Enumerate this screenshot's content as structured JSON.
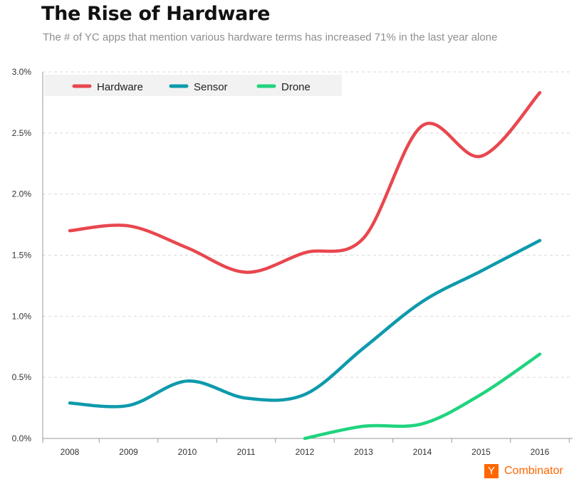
{
  "title": "The Rise of Hardware",
  "subtitle": "The # of YC apps that mention various hardware terms has increased 71% in the last year alone",
  "brand": {
    "logo_letter": "Y",
    "name": "Combinator",
    "color": "#ff6600"
  },
  "chart_data": {
    "type": "line",
    "title": "The Rise of Hardware",
    "subtitle": "The # of YC apps that mention various hardware terms has increased 71% in the last year alone",
    "xlabel": "",
    "ylabel": "",
    "x": [
      "2008",
      "2009",
      "2010",
      "2011",
      "2012",
      "2013",
      "2014",
      "2015",
      "2016"
    ],
    "ylim": [
      0,
      3.0
    ],
    "yticks": [
      0,
      0.5,
      1.0,
      1.5,
      2.0,
      2.5,
      3.0
    ],
    "ytick_labels": [
      "0.0%",
      "0.5%",
      "1.0%",
      "1.5%",
      "2.0%",
      "2.5%",
      "3.0%"
    ],
    "grid": "horizontal dashed",
    "legend": "top-left",
    "smooth": true,
    "series": [
      {
        "name": "Hardware",
        "color": "#e8474f",
        "values": [
          1.7,
          1.74,
          1.56,
          1.36,
          1.52,
          1.64,
          2.56,
          2.31,
          2.83
        ]
      },
      {
        "name": "Sensor",
        "color": "#0e9aac",
        "values": [
          0.29,
          0.27,
          0.47,
          0.33,
          0.36,
          0.74,
          1.12,
          1.37,
          1.62
        ]
      },
      {
        "name": "Drone",
        "color": "#1fd47e",
        "values": [
          null,
          null,
          null,
          null,
          0.0,
          0.1,
          0.12,
          0.36,
          0.69
        ]
      }
    ]
  }
}
